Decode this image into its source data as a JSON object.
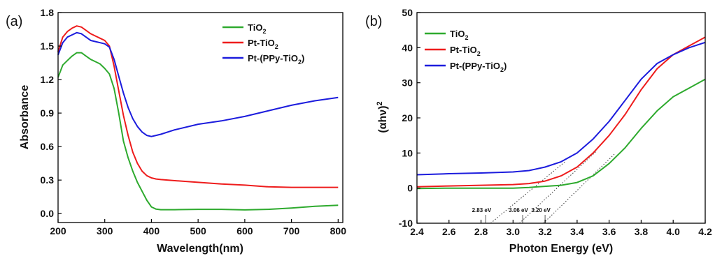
{
  "colors": {
    "tio2": "#2eaa2e",
    "pt_tio2": "#ee1c1c",
    "pt_ppy_tio2": "#1c1cdd",
    "axis": "#000000",
    "guide_line": "#444444"
  },
  "chart_data": [
    {
      "type": "line",
      "panel_label": "(a)",
      "title": "",
      "xlabel": "Wavelength(nm)",
      "ylabel": "Absorbance",
      "xlim": [
        200,
        810
      ],
      "ylim": [
        -0.08,
        1.8
      ],
      "x_ticks": [
        200,
        300,
        400,
        500,
        600,
        700,
        800
      ],
      "y_ticks": [
        0.0,
        0.3,
        0.6,
        0.9,
        1.2,
        1.5,
        1.8
      ],
      "y_tick_labels": [
        "0.0",
        "0.3",
        "0.6",
        "0.9",
        "1.2",
        "1.5",
        "1.8"
      ],
      "grid": false,
      "legend_position": "top-right",
      "series": [
        {
          "name": "TiO2",
          "legend_main": "TiO",
          "legend_sub": "2",
          "legend_tail": "",
          "color_key": "tio2",
          "x": [
            200,
            210,
            220,
            230,
            240,
            250,
            260,
            270,
            280,
            290,
            300,
            310,
            320,
            330,
            340,
            350,
            360,
            370,
            380,
            390,
            400,
            410,
            420,
            450,
            500,
            550,
            600,
            650,
            700,
            750,
            800
          ],
          "y": [
            1.22,
            1.33,
            1.37,
            1.41,
            1.44,
            1.44,
            1.41,
            1.38,
            1.36,
            1.34,
            1.3,
            1.25,
            1.12,
            0.9,
            0.65,
            0.5,
            0.38,
            0.28,
            0.2,
            0.12,
            0.06,
            0.04,
            0.035,
            0.035,
            0.038,
            0.038,
            0.033,
            0.038,
            0.05,
            0.065,
            0.075
          ]
        },
        {
          "name": "Pt-TiO2",
          "legend_main": "Pt-TiO",
          "legend_sub": "2",
          "legend_tail": "",
          "color_key": "pt_tio2",
          "x": [
            200,
            210,
            220,
            230,
            240,
            250,
            260,
            270,
            280,
            290,
            300,
            310,
            320,
            330,
            340,
            350,
            360,
            370,
            380,
            390,
            400,
            410,
            420,
            450,
            500,
            550,
            600,
            650,
            700,
            750,
            800
          ],
          "y": [
            1.45,
            1.58,
            1.63,
            1.66,
            1.68,
            1.67,
            1.64,
            1.61,
            1.59,
            1.57,
            1.55,
            1.5,
            1.32,
            1.1,
            0.88,
            0.7,
            0.55,
            0.45,
            0.38,
            0.34,
            0.32,
            0.31,
            0.305,
            0.295,
            0.28,
            0.265,
            0.255,
            0.24,
            0.235,
            0.235,
            0.235
          ]
        },
        {
          "name": "Pt-(PPy-TiO2)",
          "legend_main": "Pt-(PPy-TiO",
          "legend_sub": "2",
          "legend_tail": ")",
          "color_key": "pt_ppy_tio2",
          "x": [
            200,
            210,
            220,
            230,
            240,
            250,
            260,
            270,
            280,
            290,
            300,
            310,
            320,
            330,
            340,
            350,
            360,
            370,
            380,
            390,
            400,
            410,
            420,
            450,
            500,
            550,
            600,
            650,
            700,
            750,
            800
          ],
          "y": [
            1.42,
            1.53,
            1.58,
            1.6,
            1.62,
            1.61,
            1.58,
            1.55,
            1.54,
            1.53,
            1.52,
            1.49,
            1.38,
            1.23,
            1.08,
            0.95,
            0.85,
            0.78,
            0.73,
            0.7,
            0.69,
            0.7,
            0.71,
            0.75,
            0.8,
            0.83,
            0.87,
            0.92,
            0.97,
            1.01,
            1.04
          ]
        }
      ]
    },
    {
      "type": "line",
      "panel_label": "(b)",
      "title": "",
      "xlabel": "Photon Energy (eV)",
      "ylabel": "(αhν)²",
      "ylabel_main": "(αhν)",
      "ylabel_sup": "2",
      "xlim": [
        2.4,
        4.2
      ],
      "ylim": [
        -10,
        50
      ],
      "x_ticks": [
        2.4,
        2.6,
        2.8,
        3.0,
        3.2,
        3.4,
        3.6,
        3.8,
        4.0,
        4.2
      ],
      "x_tick_labels": [
        "2.4",
        "2.6",
        "2.8",
        "3.0",
        "3.2",
        "3.4",
        "3.6",
        "3.8",
        "4.0",
        "4.2"
      ],
      "y_ticks": [
        -10,
        0,
        10,
        20,
        30,
        40,
        50
      ],
      "grid": false,
      "legend_position": "top-left",
      "series": [
        {
          "name": "TiO2",
          "legend_main": "TiO",
          "legend_sub": "2",
          "legend_tail": "",
          "color_key": "tio2",
          "x": [
            2.4,
            2.6,
            2.8,
            3.0,
            3.1,
            3.2,
            3.3,
            3.4,
            3.5,
            3.6,
            3.7,
            3.8,
            3.9,
            4.0,
            4.1,
            4.2
          ],
          "y": [
            -0.1,
            0.0,
            0.0,
            0.0,
            0.2,
            0.5,
            0.8,
            1.6,
            3.5,
            7.0,
            11.5,
            17.0,
            22.0,
            26.0,
            28.5,
            31.0
          ]
        },
        {
          "name": "Pt-TiO2",
          "legend_main": "Pt-TiO",
          "legend_sub": "2",
          "legend_tail": "",
          "color_key": "pt_tio2",
          "x": [
            2.4,
            2.6,
            2.8,
            3.0,
            3.1,
            3.2,
            3.3,
            3.4,
            3.5,
            3.6,
            3.7,
            3.8,
            3.9,
            4.0,
            4.1,
            4.2
          ],
          "y": [
            0.4,
            0.6,
            0.8,
            1.0,
            1.3,
            2.0,
            3.5,
            6.0,
            10.0,
            15.0,
            21.0,
            28.0,
            34.0,
            38.0,
            40.5,
            43.0
          ]
        },
        {
          "name": "Pt-(PPy-TiO2)",
          "legend_main": "Pt-(PPy-TiO",
          "legend_sub": "2",
          "legend_tail": ")",
          "color_key": "pt_ppy_tio2",
          "x": [
            2.4,
            2.6,
            2.8,
            3.0,
            3.1,
            3.2,
            3.3,
            3.4,
            3.5,
            3.6,
            3.7,
            3.8,
            3.9,
            4.0,
            4.1,
            4.2
          ],
          "y": [
            3.8,
            4.1,
            4.3,
            4.6,
            5.0,
            6.0,
            7.5,
            10.0,
            14.0,
            19.0,
            25.0,
            31.0,
            35.5,
            38.0,
            40.0,
            41.5
          ]
        }
      ],
      "annotations": [
        {
          "text": "2.83 eV",
          "x": 2.83
        },
        {
          "text": "3.06 eV",
          "x": 3.06
        },
        {
          "text": "3.20 eV",
          "x": 3.2
        }
      ],
      "tangent_lines": [
        {
          "from": [
            2.86,
            -10
          ],
          "to": [
            3.33,
            7.7
          ]
        },
        {
          "from": [
            3.04,
            -10
          ],
          "to": [
            3.52,
            10.5
          ]
        },
        {
          "from": [
            3.19,
            -10
          ],
          "to": [
            3.64,
            10.0
          ]
        }
      ]
    }
  ]
}
